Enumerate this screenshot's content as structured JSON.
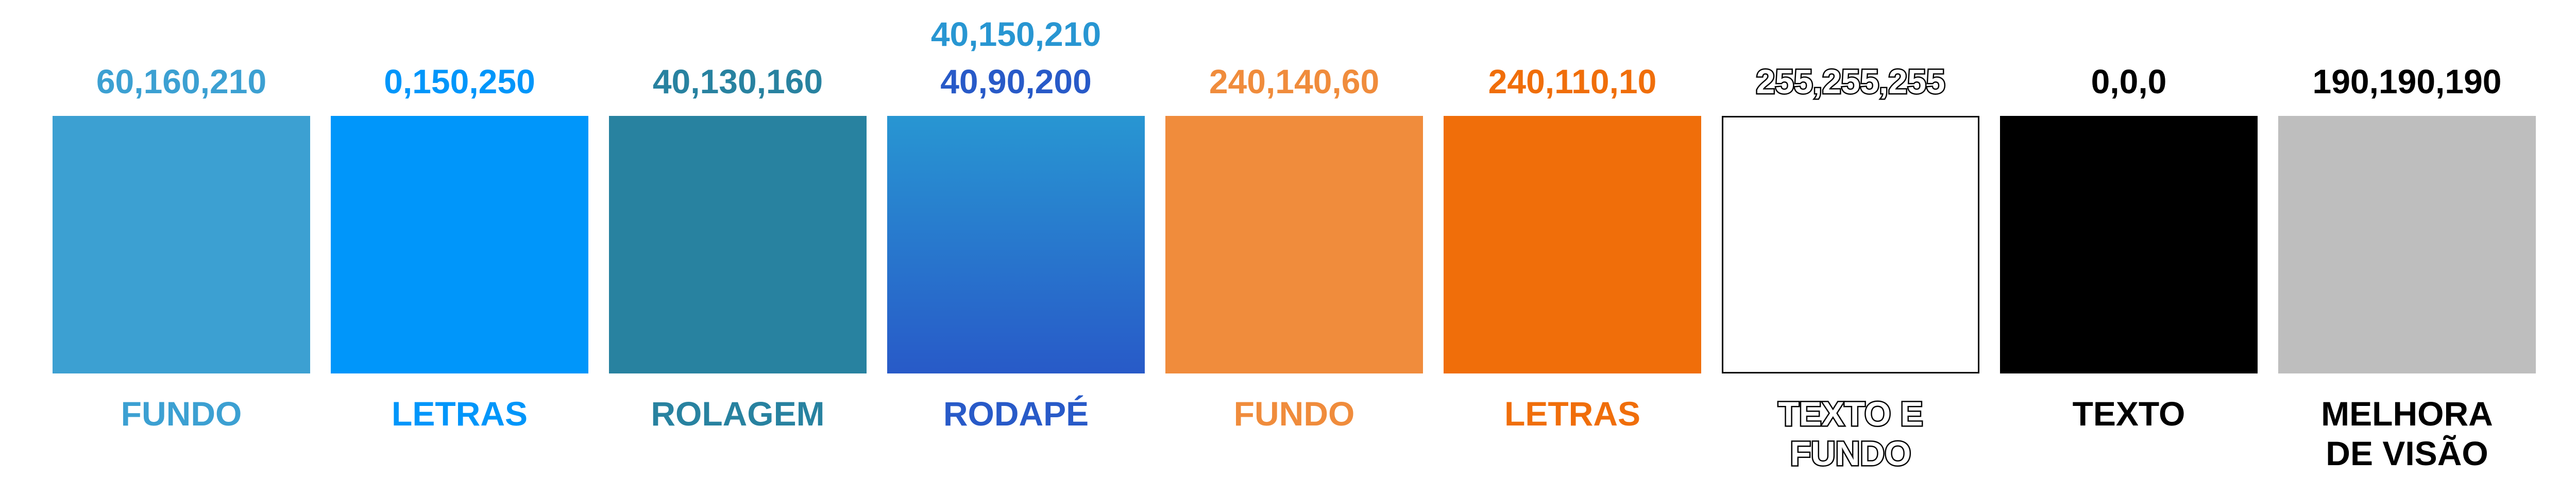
{
  "swatches": [
    {
      "rgb": "60,160,210",
      "name": "FUNDO",
      "color": "#3ca0d2",
      "text_color": "#3ca0d2"
    },
    {
      "rgb": "0,150,250",
      "name": "LETRAS",
      "color": "#0096fa",
      "text_color": "#0096fa"
    },
    {
      "rgb": "40,130,160",
      "name": "ROLAGEM",
      "color": "#2882a0",
      "text_color": "#2882a0"
    },
    {
      "rgb_top": "40,150,210",
      "rgb": "40,90,200",
      "name": "RODAPÉ",
      "color_top": "#2896d2",
      "color_bottom": "#285ac8",
      "text_color_top": "#2896d2",
      "text_color": "#285ac8"
    },
    {
      "rgb": "240,140,60",
      "name": "FUNDO",
      "color": "#f08c3c",
      "text_color": "#f08c3c"
    },
    {
      "rgb": "240,110,10",
      "name": "LETRAS",
      "color": "#f06e0a",
      "text_color": "#f06e0a"
    },
    {
      "rgb": "255,255,255",
      "name_line1": "TEXTO E",
      "name_line2": "FUNDO",
      "color": "#ffffff",
      "text_color": "#ffffff"
    },
    {
      "rgb": "0,0,0",
      "name": "TEXTO",
      "color": "#000000",
      "text_color": "#000000"
    },
    {
      "rgb": "190,190,190",
      "name_line1": "MELHORA",
      "name_line2": "DE VISÃO",
      "color": "#bebebe",
      "text_color": "#000000"
    }
  ]
}
